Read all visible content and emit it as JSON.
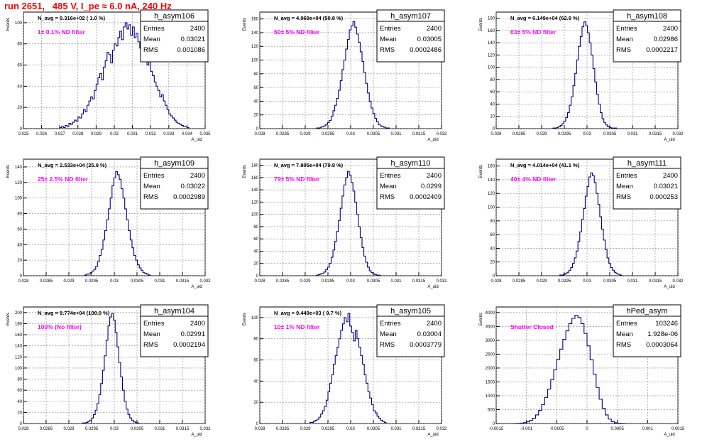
{
  "run_title": "run 2651,   485 V, I_pe ≈ 6.0 nA, 240 Hz",
  "colors": {
    "histogram_line": "#00007f",
    "annotation": "#ff00ff",
    "title": "#ff0000",
    "grid": "#808080",
    "frame": "#000000"
  },
  "stats_labels": [
    "Entries",
    "Mean",
    "RMS"
  ],
  "chart_data": [
    {
      "type": "histogram",
      "name": "h_asym106",
      "navg_label": "N_avg = 9.316e+02 ( 1.0 %)",
      "annotation": "1± 0.1% ND filter",
      "ylabel": "Events",
      "xlabel": "A_uid",
      "xlim": [
        0.025,
        0.035
      ],
      "ylim": [
        0,
        110
      ],
      "xticks": [
        "0.025",
        "0.026",
        "0.027",
        "0.028",
        "0.029",
        "0.03",
        "0.031",
        "0.032",
        "0.033",
        "0.034",
        "0.035"
      ],
      "yticks": [
        "0",
        "20",
        "40",
        "60",
        "80",
        "100"
      ],
      "grid": true,
      "stats": {
        "Entries": "2400",
        "Mean": "0.03021",
        "RMS": "0.001086"
      },
      "bins": {
        "start": 0.027,
        "width": 0.0001,
        "counts": [
          1,
          2,
          1,
          3,
          2,
          5,
          4,
          6,
          8,
          7,
          11,
          10,
          14,
          18,
          16,
          22,
          26,
          30,
          28,
          36,
          42,
          48,
          52,
          46,
          58,
          64,
          72,
          70,
          62,
          74,
          80,
          78,
          86,
          92,
          84,
          96,
          100,
          94,
          98,
          88,
          96,
          86,
          90,
          82,
          76,
          80,
          72,
          66,
          60,
          64,
          54,
          50,
          44,
          40,
          36,
          30,
          32,
          26,
          22,
          18,
          14,
          12,
          10,
          8,
          6,
          5,
          4,
          3,
          2,
          2,
          1
        ]
      }
    },
    {
      "type": "histogram",
      "name": "h_asym107",
      "navg_label": "N_avg = 4.969e+04 (50.8 %)",
      "annotation": "50± 5% ND filter",
      "ylabel": "Events",
      "xlabel": "A_uid",
      "xlim": [
        0.028,
        0.032
      ],
      "ylim": [
        0,
        170
      ],
      "xticks": [
        "0.028",
        "0.0285",
        "0.029",
        "0.0295",
        "0.03",
        "0.0305",
        "0.031",
        "0.0315",
        "0.032"
      ],
      "yticks": [
        "0",
        "20",
        "40",
        "60",
        "80",
        "100",
        "120",
        "140",
        "160"
      ],
      "grid": true,
      "stats": {
        "Entries": "2400",
        "Mean": "0.03005",
        "RMS": "0.0002486"
      },
      "bins": {
        "start": 0.02925,
        "width": 4e-05,
        "counts": [
          1,
          1,
          2,
          3,
          4,
          6,
          9,
          12,
          18,
          26,
          34,
          44,
          56,
          70,
          86,
          100,
          116,
          130,
          144,
          150,
          156,
          148,
          138,
          126,
          112,
          98,
          82,
          66,
          52,
          40,
          30,
          22,
          15,
          10,
          6,
          4,
          3,
          2,
          1,
          1
        ]
      }
    },
    {
      "type": "histogram",
      "name": "h_asym108",
      "navg_label": "N_avg = 6.149e+04 (62.9 %)",
      "annotation": "63± 5% ND filter",
      "ylabel": "Events",
      "xlabel": "A_uid",
      "xlim": [
        0.028,
        0.032
      ],
      "ylim": [
        0,
        190
      ],
      "xticks": [
        "0.028",
        "0.0285",
        "0.029",
        "0.0295",
        "0.03",
        "0.0305",
        "0.031",
        "0.0315",
        "0.032"
      ],
      "yticks": [
        "0",
        "20",
        "40",
        "60",
        "80",
        "100",
        "120",
        "140",
        "160",
        "180"
      ],
      "grid": true,
      "stats": {
        "Entries": "2400",
        "Mean": "0.02986",
        "RMS": "0.0002217"
      },
      "bins": {
        "start": 0.02925,
        "width": 4e-05,
        "counts": [
          1,
          1,
          2,
          3,
          5,
          8,
          12,
          18,
          26,
          38,
          52,
          70,
          90,
          112,
          134,
          150,
          166,
          174,
          168,
          156,
          140,
          120,
          98,
          76,
          56,
          40,
          26,
          16,
          10,
          6,
          3,
          2,
          1,
          1,
          1
        ]
      }
    },
    {
      "type": "histogram",
      "name": "h_asym109",
      "navg_label": "N_avg = 2.533e+04 (25.9 %)",
      "annotation": "25± 2.5% ND filter",
      "ylabel": "Events",
      "xlabel": "A_uid",
      "xlim": [
        0.028,
        0.032
      ],
      "ylim": [
        0,
        150
      ],
      "xticks": [
        "0.028",
        "0.0285",
        "0.029",
        "0.0295",
        "0.03",
        "0.0305",
        "0.031",
        "0.0315",
        "0.032"
      ],
      "yticks": [
        "0",
        "20",
        "40",
        "60",
        "80",
        "100",
        "120",
        "140"
      ],
      "grid": true,
      "stats": {
        "Entries": "2400",
        "Mean": "0.03022",
        "RMS": "0.0002989"
      },
      "bins": {
        "start": 0.02935,
        "width": 4e-05,
        "counts": [
          1,
          2,
          2,
          4,
          6,
          8,
          12,
          18,
          26,
          34,
          46,
          58,
          72,
          86,
          100,
          116,
          126,
          134,
          130,
          124,
          112,
          100,
          86,
          72,
          58,
          46,
          36,
          26,
          20,
          14,
          10,
          7,
          4,
          3,
          2,
          1
        ]
      }
    },
    {
      "type": "histogram",
      "name": "h_asym110",
      "navg_label": "N_avg = 7.805e+04 (79.9 %)",
      "annotation": "79± 5% ND filter",
      "ylabel": "Events",
      "xlabel": "A_uid",
      "xlim": [
        0.028,
        0.032
      ],
      "ylim": [
        0,
        190
      ],
      "xticks": [
        "0.028",
        "0.0285",
        "0.029",
        "0.0295",
        "0.03",
        "0.0305",
        "0.031",
        "0.0315",
        "0.032"
      ],
      "yticks": [
        "0",
        "20",
        "40",
        "60",
        "80",
        "100",
        "120",
        "140",
        "160",
        "180"
      ],
      "grid": true,
      "stats": {
        "Entries": "2400",
        "Mean": "0.0299",
        "RMS": "0.0002409"
      },
      "bins": {
        "start": 0.02925,
        "width": 4e-05,
        "counts": [
          1,
          2,
          3,
          4,
          6,
          10,
          14,
          20,
          30,
          42,
          56,
          72,
          90,
          110,
          130,
          148,
          160,
          170,
          164,
          152,
          138,
          120,
          100,
          80,
          62,
          46,
          32,
          22,
          14,
          8,
          5,
          3,
          2,
          1,
          1
        ]
      }
    },
    {
      "type": "histogram",
      "name": "h_asym111",
      "navg_label": "N_avg = 4.014e+04 (41.1 %)",
      "annotation": "40± 4% ND filter",
      "ylabel": "Events",
      "xlabel": "A_uid",
      "xlim": [
        0.028,
        0.032
      ],
      "ylim": [
        0,
        170
      ],
      "xticks": [
        "0.028",
        "0.0285",
        "0.029",
        "0.0295",
        "0.03",
        "0.0305",
        "0.031",
        "0.0315",
        "0.032"
      ],
      "yticks": [
        "0",
        "20",
        "40",
        "60",
        "80",
        "100",
        "120",
        "140",
        "160"
      ],
      "grid": true,
      "stats": {
        "Entries": "2400",
        "Mean": "0.03021",
        "RMS": "0.000253"
      },
      "bins": {
        "start": 0.0294,
        "width": 4e-05,
        "counts": [
          1,
          1,
          2,
          3,
          5,
          8,
          12,
          18,
          26,
          36,
          50,
          64,
          82,
          98,
          116,
          130,
          144,
          150,
          146,
          136,
          120,
          104,
          86,
          68,
          52,
          38,
          26,
          18,
          12,
          8,
          5,
          3,
          2,
          1
        ]
      }
    },
    {
      "type": "histogram",
      "name": "h_asym104",
      "navg_label": "N_avg = 9.774e+04 (100.0 %)",
      "annotation": "100% (No filter)",
      "ylabel": "Events",
      "xlabel": "A_uid",
      "xlim": [
        0.028,
        0.032
      ],
      "ylim": [
        0,
        210
      ],
      "xticks": [
        "0.028",
        "0.0285",
        "0.029",
        "0.0295",
        "0.03",
        "0.0305",
        "0.031",
        "0.0315",
        "0.032"
      ],
      "yticks": [
        "0",
        "20",
        "40",
        "60",
        "80",
        "100",
        "120",
        "140",
        "160",
        "180",
        "200"
      ],
      "grid": true,
      "stats": {
        "Entries": "2400",
        "Mean": "0.02991",
        "RMS": "0.0002194"
      },
      "bins": {
        "start": 0.0293,
        "width": 4e-05,
        "counts": [
          1,
          1,
          2,
          4,
          6,
          10,
          16,
          24,
          36,
          52,
          72,
          96,
          122,
          150,
          176,
          192,
          198,
          186,
          164,
          138,
          110,
          84,
          60,
          40,
          26,
          16,
          10,
          6,
          3,
          2,
          1
        ]
      }
    },
    {
      "type": "histogram",
      "name": "h_asym105",
      "navg_label": "N_avg = 9.449e+03 ( 9.7 %)",
      "annotation": "10± 1% ND filter",
      "ylabel": "Events",
      "xlabel": "A_uid",
      "xlim": [
        0.028,
        0.032
      ],
      "ylim": [
        0,
        110
      ],
      "xticks": [
        "0.028",
        "0.0285",
        "0.029",
        "0.0295",
        "0.03",
        "0.0305",
        "0.031",
        "0.0315",
        "0.032"
      ],
      "yticks": [
        "0",
        "20",
        "40",
        "60",
        "80",
        "100"
      ],
      "grid": true,
      "stats": {
        "Entries": "2400",
        "Mean": "0.03004",
        "RMS": "0.0003779"
      },
      "bins": {
        "start": 0.0291,
        "width": 4e-05,
        "counts": [
          1,
          1,
          2,
          3,
          4,
          6,
          9,
          12,
          16,
          22,
          30,
          38,
          46,
          56,
          64,
          72,
          80,
          88,
          94,
          100,
          96,
          104,
          92,
          86,
          78,
          88,
          80,
          72,
          64,
          56,
          46,
          38,
          30,
          24,
          18,
          12,
          10,
          7,
          5,
          3,
          2,
          1
        ]
      }
    },
    {
      "type": "histogram",
      "name": "hPed_asym",
      "navg_label": "",
      "annotation": "Shutter Closed",
      "ylabel": "Events",
      "xlabel": "A_uid",
      "xlim": [
        -0.0015,
        0.0015
      ],
      "ylim": [
        0,
        4200
      ],
      "xticks": [
        "-0.0015",
        "-0.001",
        "-0.0005",
        "0",
        "0.0005",
        "0.001",
        "0.0015"
      ],
      "yticks": [
        "0",
        "500",
        "1000",
        "1500",
        "2000",
        "2500",
        "3000",
        "3500",
        "4000"
      ],
      "grid": true,
      "stats": {
        "Entries": "103246",
        "Mean": "1.928e-06",
        "RMS": "0.0003064"
      },
      "bins": {
        "start": -0.0012,
        "width": 5e-05,
        "counts": [
          2,
          6,
          14,
          30,
          60,
          110,
          190,
          310,
          470,
          680,
          940,
          1240,
          1580,
          1940,
          2310,
          2680,
          3030,
          3340,
          3600,
          3790,
          3900,
          3820,
          3600,
          3250,
          2800,
          2300,
          1780,
          1300,
          880,
          550,
          310,
          160,
          70,
          28,
          10,
          4,
          2
        ]
      }
    }
  ]
}
